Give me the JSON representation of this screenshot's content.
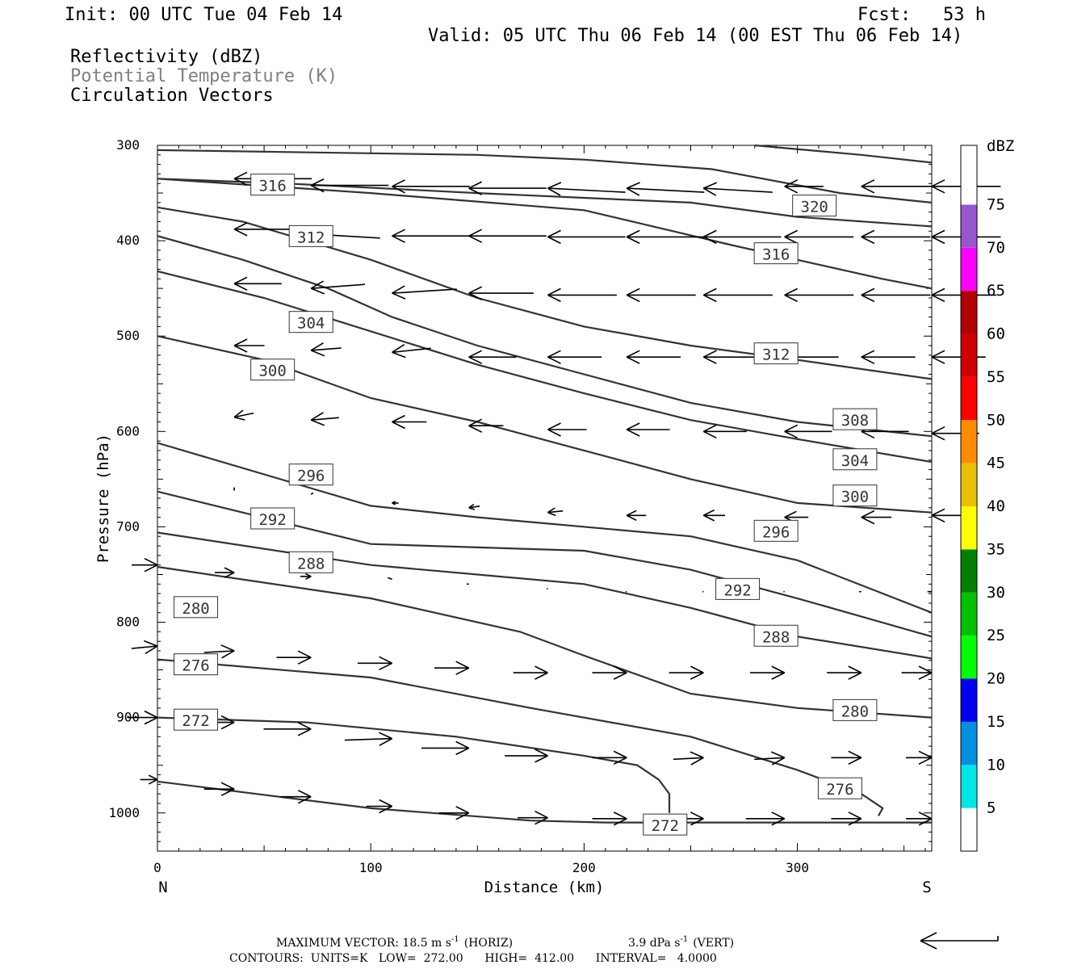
{
  "header": {
    "init": "Init: 00 UTC Tue 04 Feb 14",
    "fcst": "Fcst:   53 h",
    "valid": "Valid: 05 UTC Thu 06 Feb 14 (00 EST Thu 06 Feb 14)",
    "fields": [
      "Reflectivity (dBZ)",
      "Potential Temperature (K)",
      "Circulation Vectors"
    ]
  },
  "footer": {
    "max_vector": "MAXIMUM VECTOR:  18.5 m s",
    "max_horiz_unit": "(HORIZ)",
    "max_vert": "3.9 dPa s",
    "max_vert_unit": "(VERT)",
    "exp": "-1",
    "contours": "CONTOURS:  UNITS=K   LOW=  272.00      HIGH=  412.00      INTERVAL=   4.0000"
  },
  "colors": {
    "contour": "#333333",
    "vector": "#000000",
    "faded_label": "#808080"
  },
  "colorbar": {
    "title": "dBZ",
    "ticks": [
      "5",
      "10",
      "15",
      "20",
      "25",
      "30",
      "35",
      "40",
      "45",
      "50",
      "55",
      "60",
      "65",
      "70",
      "75"
    ],
    "colors": [
      "#ffffff",
      "#00e5e5",
      "#0090e0",
      "#0000f0",
      "#00ff00",
      "#00c000",
      "#008000",
      "#ffff00",
      "#e8c000",
      "#ff8c00",
      "#ff0000",
      "#d00000",
      "#b00000",
      "#ff00ff",
      "#9955cc",
      "#ffffff"
    ]
  },
  "chart_data": {
    "type": "cross-section",
    "xlabel": "Distance (km)",
    "ylabel": "Pressure (hPa)",
    "xlim": [
      0,
      363
    ],
    "ylim": [
      1040,
      300
    ],
    "x_ticks": [
      0,
      100,
      200,
      300
    ],
    "y_ticks": [
      300,
      400,
      500,
      600,
      700,
      800,
      900,
      1000
    ],
    "x_end_labels": {
      "left": "N",
      "right": "S"
    },
    "contours": [
      {
        "value": 272,
        "points": [
          [
            0,
            967
          ],
          [
            100,
            995
          ],
          [
            175,
            1008
          ],
          [
            210,
            1010
          ],
          [
            363,
            1010
          ]
        ]
      },
      {
        "value": 272,
        "points": [
          [
            0,
            900
          ],
          [
            70,
            905
          ],
          [
            140,
            920
          ],
          [
            200,
            940
          ],
          [
            225,
            950
          ],
          [
            235,
            965
          ],
          [
            240,
            980
          ],
          [
            240,
            1000
          ]
        ]
      },
      {
        "value": 276,
        "points": [
          [
            0,
            839
          ],
          [
            100,
            858
          ],
          [
            175,
            890
          ],
          [
            250,
            920
          ],
          [
            300,
            955
          ],
          [
            330,
            980
          ],
          [
            340,
            995
          ],
          [
            338,
            1003
          ]
        ]
      },
      {
        "value": 280,
        "points": [
          [
            0,
            742
          ],
          [
            100,
            775
          ],
          [
            170,
            810
          ],
          [
            200,
            835
          ],
          [
            250,
            875
          ],
          [
            300,
            890
          ],
          [
            363,
            900
          ]
        ]
      },
      {
        "value": 284,
        "points": [
          [
            0,
            706
          ],
          [
            100,
            740
          ],
          [
            200,
            760
          ],
          [
            250,
            785
          ],
          [
            300,
            815
          ],
          [
            363,
            838
          ]
        ]
      },
      {
        "value": 288,
        "points": [
          [
            0,
            663
          ],
          [
            100,
            718
          ],
          [
            200,
            725
          ],
          [
            250,
            745
          ],
          [
            300,
            775
          ],
          [
            363,
            815
          ]
        ]
      },
      {
        "value": 292,
        "points": [
          [
            0,
            612
          ],
          [
            100,
            678
          ],
          [
            150,
            690
          ],
          [
            250,
            710
          ],
          [
            300,
            735
          ],
          [
            363,
            790
          ]
        ]
      },
      {
        "value": 296,
        "points": [
          [
            0,
            500
          ],
          [
            50,
            525
          ],
          [
            100,
            565
          ],
          [
            150,
            590
          ],
          [
            200,
            620
          ],
          [
            250,
            650
          ],
          [
            300,
            675
          ],
          [
            363,
            685
          ]
        ]
      },
      {
        "value": 300,
        "points": [
          [
            0,
            432
          ],
          [
            50,
            460
          ],
          [
            100,
            495
          ],
          [
            150,
            530
          ],
          [
            200,
            560
          ],
          [
            250,
            588
          ],
          [
            300,
            608
          ],
          [
            363,
            632
          ]
        ]
      },
      {
        "value": 304,
        "points": [
          [
            0,
            395
          ],
          [
            40,
            420
          ],
          [
            80,
            450
          ],
          [
            110,
            480
          ],
          [
            150,
            510
          ],
          [
            200,
            540
          ],
          [
            250,
            570
          ],
          [
            300,
            590
          ],
          [
            363,
            605
          ]
        ]
      },
      {
        "value": 308,
        "points": [
          [
            0,
            365
          ],
          [
            40,
            380
          ],
          [
            100,
            420
          ],
          [
            150,
            460
          ],
          [
            200,
            490
          ],
          [
            250,
            510
          ],
          [
            300,
            525
          ],
          [
            363,
            545
          ]
        ]
      },
      {
        "value": 312,
        "points": [
          [
            0,
            335
          ],
          [
            100,
            350
          ],
          [
            200,
            368
          ],
          [
            270,
            405
          ],
          [
            340,
            440
          ],
          [
            363,
            450
          ]
        ]
      },
      {
        "value": 316,
        "points": [
          [
            0,
            335
          ],
          [
            60,
            340
          ],
          [
            150,
            350
          ],
          [
            200,
            355
          ],
          [
            250,
            360
          ],
          [
            300,
            375
          ],
          [
            363,
            385
          ]
        ]
      },
      {
        "value": 320,
        "points": [
          [
            0,
            305
          ],
          [
            150,
            310
          ],
          [
            200,
            315
          ],
          [
            260,
            325
          ],
          [
            320,
            350
          ],
          [
            363,
            360
          ]
        ]
      },
      {
        "value": 320,
        "points": [
          [
            280,
            300
          ],
          [
            330,
            310
          ],
          [
            363,
            318
          ]
        ]
      }
    ],
    "contour_labels": [
      {
        "text": "316",
        "x": 54,
        "y": 342
      },
      {
        "text": "312",
        "x": 72,
        "y": 396
      },
      {
        "text": "304",
        "x": 72,
        "y": 486
      },
      {
        "text": "300",
        "x": 54,
        "y": 536
      },
      {
        "text": "296",
        "x": 72,
        "y": 646
      },
      {
        "text": "292",
        "x": 54,
        "y": 692
      },
      {
        "text": "288",
        "x": 72,
        "y": 738
      },
      {
        "text": "280",
        "x": 18,
        "y": 785
      },
      {
        "text": "276",
        "x": 18,
        "y": 845
      },
      {
        "text": "272",
        "x": 18,
        "y": 903
      },
      {
        "text": "320",
        "x": 308,
        "y": 364
      },
      {
        "text": "316",
        "x": 290,
        "y": 414
      },
      {
        "text": "312",
        "x": 290,
        "y": 519
      },
      {
        "text": "308",
        "x": 327,
        "y": 588
      },
      {
        "text": "304",
        "x": 327,
        "y": 630
      },
      {
        "text": "300",
        "x": 327,
        "y": 668
      },
      {
        "text": "296",
        "x": 290,
        "y": 705
      },
      {
        "text": "292",
        "x": 272,
        "y": 766
      },
      {
        "text": "288",
        "x": 290,
        "y": 815
      },
      {
        "text": "280",
        "x": 327,
        "y": 893
      },
      {
        "text": "276",
        "x": 320,
        "y": 975
      },
      {
        "text": "272",
        "x": 238,
        "y": 1013
      }
    ],
    "vectors": [
      {
        "x": 36,
        "p": 335,
        "u": -36,
        "w": 0
      },
      {
        "x": 72,
        "p": 342,
        "u": -36,
        "w": 0
      },
      {
        "x": 110,
        "p": 343,
        "u": -36,
        "w": 0
      },
      {
        "x": 146,
        "p": 345,
        "u": -36,
        "w": 0
      },
      {
        "x": 183,
        "p": 345,
        "u": -36,
        "w": -0.5
      },
      {
        "x": 220,
        "p": 345,
        "u": -36,
        "w": -0.5
      },
      {
        "x": 256,
        "p": 345,
        "u": -32,
        "w": -0.5
      },
      {
        "x": 294,
        "p": 343,
        "u": -18,
        "w": 0
      },
      {
        "x": 330,
        "p": 343,
        "u": -36,
        "w": 0
      },
      {
        "x": 363,
        "p": 343,
        "u": -32,
        "w": 0
      },
      {
        "x": 36,
        "p": 388,
        "u": -32,
        "w": 0
      },
      {
        "x": 72,
        "p": 393,
        "u": -32,
        "w": -0.5
      },
      {
        "x": 110,
        "p": 395,
        "u": -36,
        "w": 0
      },
      {
        "x": 146,
        "p": 395,
        "u": -36,
        "w": 0
      },
      {
        "x": 183,
        "p": 396,
        "u": -36,
        "w": 0
      },
      {
        "x": 220,
        "p": 396,
        "u": -36,
        "w": 0
      },
      {
        "x": 256,
        "p": 396,
        "u": -36,
        "w": 0
      },
      {
        "x": 294,
        "p": 396,
        "u": -32,
        "w": 0
      },
      {
        "x": 330,
        "p": 396,
        "u": -32,
        "w": 0
      },
      {
        "x": 363,
        "p": 396,
        "u": -32,
        "w": 0
      },
      {
        "x": 36,
        "p": 445,
        "u": -22,
        "w": 0
      },
      {
        "x": 72,
        "p": 450,
        "u": -25,
        "w": 0.5
      },
      {
        "x": 110,
        "p": 455,
        "u": -30,
        "w": 0.5
      },
      {
        "x": 146,
        "p": 455,
        "u": -30,
        "w": 0
      },
      {
        "x": 183,
        "p": 457,
        "u": -32,
        "w": 0
      },
      {
        "x": 220,
        "p": 457,
        "u": -32,
        "w": 0
      },
      {
        "x": 256,
        "p": 457,
        "u": -32,
        "w": 0
      },
      {
        "x": 294,
        "p": 457,
        "u": -32,
        "w": 0
      },
      {
        "x": 330,
        "p": 457,
        "u": -32,
        "w": 0
      },
      {
        "x": 363,
        "p": 457,
        "u": -30,
        "w": 0
      },
      {
        "x": 36,
        "p": 510,
        "u": -14,
        "w": 0
      },
      {
        "x": 72,
        "p": 515,
        "u": -14,
        "w": 0.3
      },
      {
        "x": 110,
        "p": 517,
        "u": -18,
        "w": 0.5
      },
      {
        "x": 146,
        "p": 522,
        "u": -22,
        "w": 0
      },
      {
        "x": 183,
        "p": 522,
        "u": -25,
        "w": 0
      },
      {
        "x": 220,
        "p": 522,
        "u": -25,
        "w": 0
      },
      {
        "x": 256,
        "p": 522,
        "u": -25,
        "w": 0
      },
      {
        "x": 294,
        "p": 522,
        "u": -25,
        "w": 0
      },
      {
        "x": 330,
        "p": 522,
        "u": -25,
        "w": 0
      },
      {
        "x": 363,
        "p": 522,
        "u": -25,
        "w": 0
      },
      {
        "x": 36,
        "p": 585,
        "u": -9,
        "w": 0.5
      },
      {
        "x": 72,
        "p": 588,
        "u": -13,
        "w": 0.3
      },
      {
        "x": 110,
        "p": 590,
        "u": -16,
        "w": 0
      },
      {
        "x": 146,
        "p": 594,
        "u": -16,
        "w": 0
      },
      {
        "x": 183,
        "p": 598,
        "u": -18,
        "w": 0
      },
      {
        "x": 220,
        "p": 598,
        "u": -20,
        "w": 0
      },
      {
        "x": 256,
        "p": 600,
        "u": -20,
        "w": 0
      },
      {
        "x": 294,
        "p": 600,
        "u": -22,
        "w": 0
      },
      {
        "x": 330,
        "p": 600,
        "u": -22,
        "w": 0
      },
      {
        "x": 363,
        "p": 602,
        "u": -22,
        "w": 0
      },
      {
        "x": 36,
        "p": 662,
        "u": 0,
        "w": 0.4
      },
      {
        "x": 72,
        "p": 666,
        "u": -1,
        "w": 0.2
      },
      {
        "x": 110,
        "p": 675,
        "u": -3,
        "w": 0
      },
      {
        "x": 146,
        "p": 680,
        "u": -5,
        "w": 0.2
      },
      {
        "x": 183,
        "p": 685,
        "u": -7,
        "w": 0.2
      },
      {
        "x": 220,
        "p": 688,
        "u": -9,
        "w": 0
      },
      {
        "x": 256,
        "p": 688,
        "u": -10,
        "w": 0
      },
      {
        "x": 294,
        "p": 690,
        "u": -11,
        "w": 0
      },
      {
        "x": 330,
        "p": 690,
        "u": -14,
        "w": 0
      },
      {
        "x": 363,
        "p": 688,
        "u": -16,
        "w": 0
      },
      {
        "x": 0,
        "p": 740,
        "u": 12,
        "w": 0
      },
      {
        "x": 36,
        "p": 748,
        "u": 9,
        "w": 0
      },
      {
        "x": 72,
        "p": 752,
        "u": 5,
        "w": 0
      },
      {
        "x": 110,
        "p": 755,
        "u": 2,
        "w": 0.2
      },
      {
        "x": 146,
        "p": 760,
        "u": 1,
        "w": 0
      },
      {
        "x": 183,
        "p": 765,
        "u": 0.5,
        "w": 0
      },
      {
        "x": 220,
        "p": 768,
        "u": 0.5,
        "w": 0
      },
      {
        "x": 256,
        "p": 768,
        "u": 0.5,
        "w": 0
      },
      {
        "x": 294,
        "p": 768,
        "u": 0.5,
        "w": 0
      },
      {
        "x": 330,
        "p": 768,
        "u": 1,
        "w": 0
      },
      {
        "x": 363,
        "p": 768,
        "u": 2,
        "w": 0
      },
      {
        "x": 0,
        "p": 825,
        "u": 12,
        "w": -0.3
      },
      {
        "x": 36,
        "p": 830,
        "u": 14,
        "w": -0.2
      },
      {
        "x": 72,
        "p": 837,
        "u": 16,
        "w": 0
      },
      {
        "x": 110,
        "p": 843,
        "u": 16,
        "w": 0
      },
      {
        "x": 146,
        "p": 848,
        "u": 16,
        "w": 0
      },
      {
        "x": 183,
        "p": 853,
        "u": 16,
        "w": 0
      },
      {
        "x": 220,
        "p": 853,
        "u": 16,
        "w": 0
      },
      {
        "x": 256,
        "p": 853,
        "u": 16,
        "w": 0
      },
      {
        "x": 294,
        "p": 853,
        "u": 16,
        "w": 0
      },
      {
        "x": 330,
        "p": 853,
        "u": 16,
        "w": 0
      },
      {
        "x": 363,
        "p": 853,
        "u": 14,
        "w": 0
      },
      {
        "x": 0,
        "p": 900,
        "u": 14,
        "w": 0
      },
      {
        "x": 36,
        "p": 905,
        "u": 20,
        "w": 0
      },
      {
        "x": 72,
        "p": 912,
        "u": 22,
        "w": 0
      },
      {
        "x": 110,
        "p": 922,
        "u": 22,
        "w": -0.2
      },
      {
        "x": 146,
        "p": 932,
        "u": 22,
        "w": 0
      },
      {
        "x": 183,
        "p": 940,
        "u": 20,
        "w": 0
      },
      {
        "x": 220,
        "p": 942,
        "u": 16,
        "w": 0
      },
      {
        "x": 256,
        "p": 942,
        "u": 14,
        "w": -0.2
      },
      {
        "x": 294,
        "p": 942,
        "u": 14,
        "w": -0.2
      },
      {
        "x": 330,
        "p": 942,
        "u": 14,
        "w": 0
      },
      {
        "x": 363,
        "p": 942,
        "u": 12,
        "w": 0
      },
      {
        "x": 0,
        "p": 965,
        "u": 8,
        "w": 0
      },
      {
        "x": 36,
        "p": 975,
        "u": 14,
        "w": 0
      },
      {
        "x": 72,
        "p": 983,
        "u": 14,
        "w": 0
      },
      {
        "x": 110,
        "p": 993,
        "u": 12,
        "w": 0
      },
      {
        "x": 146,
        "p": 1000,
        "u": 14,
        "w": 0
      },
      {
        "x": 183,
        "p": 1005,
        "u": 14,
        "w": 0
      },
      {
        "x": 220,
        "p": 1006,
        "u": 16,
        "w": 0
      },
      {
        "x": 256,
        "p": 1006,
        "u": 20,
        "w": 0
      },
      {
        "x": 294,
        "p": 1006,
        "u": 18,
        "w": 0
      },
      {
        "x": 330,
        "p": 1006,
        "u": 14,
        "w": 0
      },
      {
        "x": 363,
        "p": 1006,
        "u": 12,
        "w": 0
      }
    ]
  }
}
